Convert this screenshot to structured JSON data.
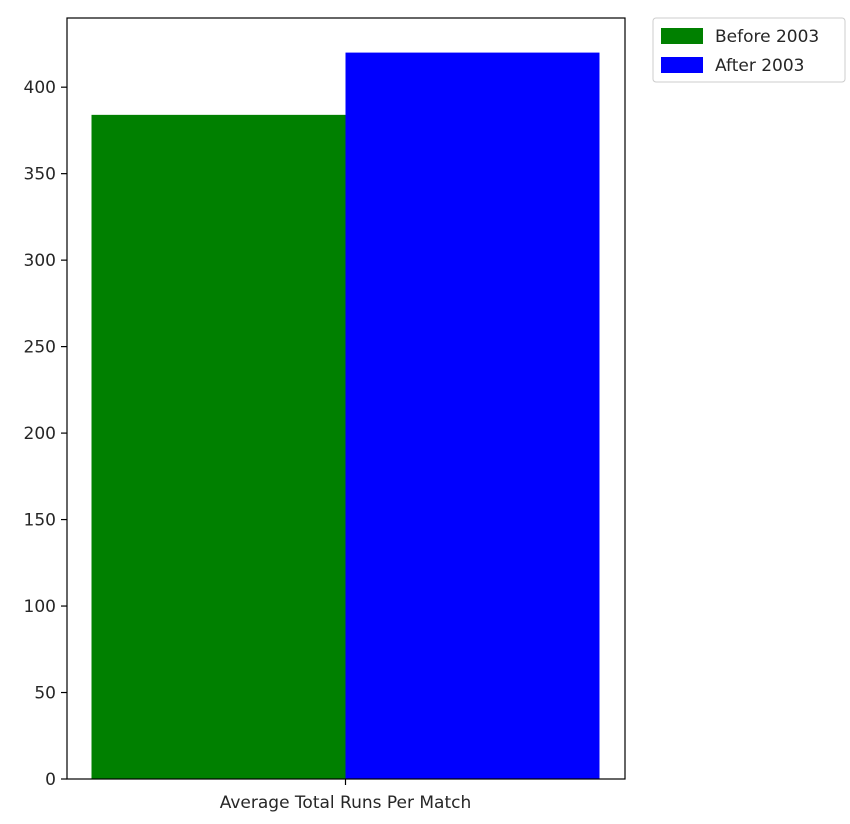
{
  "chart_data": {
    "type": "bar",
    "categories": [
      "Average Total Runs Per Match"
    ],
    "series": [
      {
        "name": "Before 2003",
        "values": [
          384
        ],
        "color": "#008000"
      },
      {
        "name": "After 2003",
        "values": [
          420
        ],
        "color": "#0000ff"
      }
    ],
    "title": "",
    "xlabel": "",
    "ylabel": "",
    "ylim": [
      0,
      440
    ],
    "yticks": [
      0,
      50,
      100,
      150,
      200,
      250,
      300,
      350,
      400
    ],
    "grid": false,
    "legend_position": "outside-top-right"
  }
}
